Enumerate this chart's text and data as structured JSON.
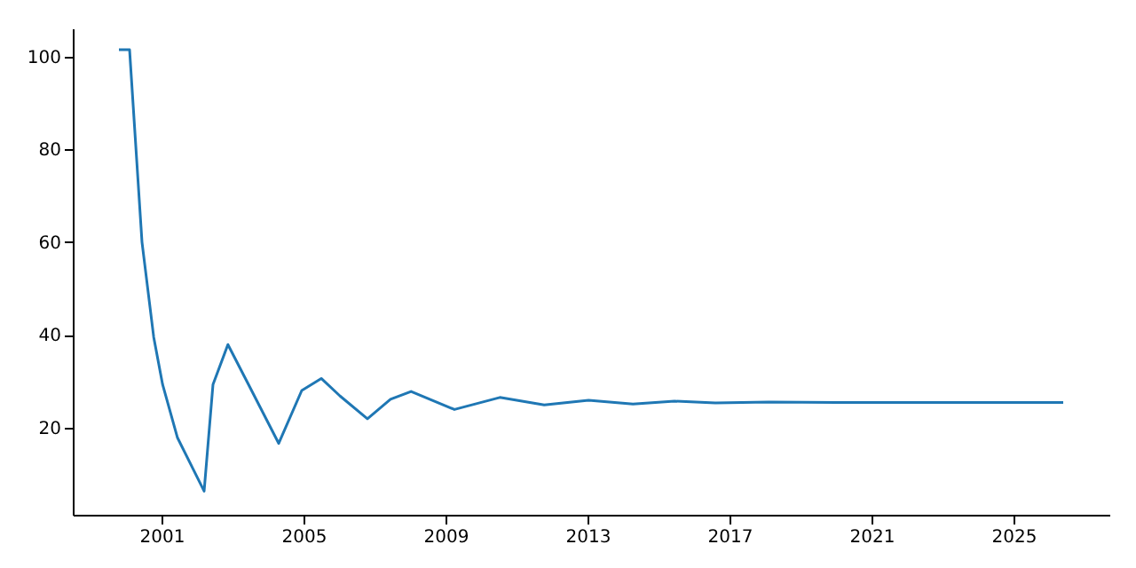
{
  "chart_data": {
    "type": "line",
    "x": [
      1999.8,
      2000.1,
      2000.45,
      2000.78,
      2001.03,
      2001.45,
      2002.2,
      2002.45,
      2002.87,
      2003.45,
      2004.3,
      2004.95,
      2005.5,
      2006.03,
      2006.8,
      2007.45,
      2008.03,
      2009.25,
      2010.53,
      2011.78,
      2013.03,
      2014.28,
      2015.45,
      2016.6,
      2018.1,
      2020,
      2022,
      2024,
      2026.4
    ],
    "series": [
      {
        "color": "#1f77b4",
        "values": [
          101.5,
          101.5,
          60,
          39.5,
          29.3,
          17.8,
          6.3,
          29.3,
          37.9,
          29.3,
          16.6,
          28.0,
          30.6,
          26.8,
          21.9,
          26.1,
          27.8,
          23.9,
          26.5,
          24.9,
          25.9,
          25.1,
          25.7,
          25.3,
          25.5,
          25.4,
          25.4,
          25.4,
          25.4
        ]
      }
    ],
    "xlim": [
      1998.5,
      2027.7
    ],
    "xticks": [
      2001,
      2005,
      2009,
      2013,
      2017,
      2021,
      2025
    ],
    "ylim": [
      1.2,
      106.1
    ],
    "yticks": [
      20,
      40,
      60,
      80,
      100
    ],
    "grid": false,
    "marker": "none",
    "line_style": "solid"
  }
}
